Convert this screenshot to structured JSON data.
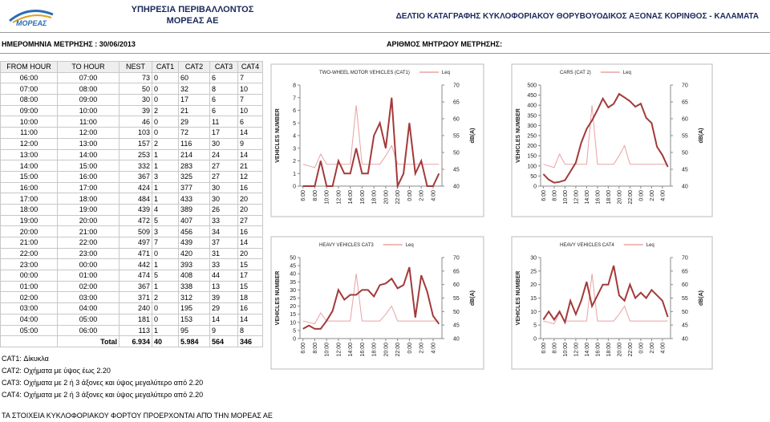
{
  "header": {
    "logo": "ΜΟΡΕΑΣ",
    "org_line1": "ΥΠΗΡΕΣΙΑ ΠΕΡΙΒΑΛΛΟΝΤΟΣ",
    "org_line2": "ΜΟΡΕΑΣ ΑΕ",
    "report_title": "ΔΕΛΤΙΟ ΚΑΤΑΓΡΑΦΗΣ ΚΥΚΛΟΦΟΡΙΑΚΟΥ ΘΟΡΥΒΟΥΟΔΙΚΟΣ ΑΞΟΝΑΣ ΚΟΡΙΝΘΟΣ - ΚΑΛΑΜΑΤΑ"
  },
  "info": {
    "date_label": "ΗΜΕΡΟΜΗΝΙΑ ΜΕΤΡΗΣΗΣ : 30/06/2013",
    "registry_label": "ΑΡΙΘΜΟΣ ΜΗΤΡΩΟΥ ΜΕΤΡΗΣΗΣ:"
  },
  "table": {
    "columns": [
      "FROM HOUR",
      "TO HOUR",
      "NEST",
      "CAT1",
      "CAT2",
      "CAT3",
      "CAT4"
    ],
    "rows": [
      [
        "06:00",
        "07:00",
        73,
        0,
        60,
        6,
        7
      ],
      [
        "07:00",
        "08:00",
        50,
        0,
        32,
        8,
        10
      ],
      [
        "08:00",
        "09:00",
        30,
        0,
        17,
        6,
        7
      ],
      [
        "09:00",
        "10:00",
        39,
        2,
        21,
        6,
        10
      ],
      [
        "10:00",
        "11:00",
        46,
        0,
        29,
        11,
        6
      ],
      [
        "11:00",
        "12:00",
        103,
        0,
        72,
        17,
        14
      ],
      [
        "12:00",
        "13:00",
        157,
        2,
        116,
        30,
        9
      ],
      [
        "13:00",
        "14:00",
        253,
        1,
        214,
        24,
        14
      ],
      [
        "14:00",
        "15:00",
        332,
        1,
        283,
        27,
        21
      ],
      [
        "15:00",
        "16:00",
        367,
        3,
        325,
        27,
        12
      ],
      [
        "16:00",
        "17:00",
        424,
        1,
        377,
        30,
        16
      ],
      [
        "17:00",
        "18:00",
        484,
        1,
        433,
        30,
        20
      ],
      [
        "18:00",
        "19:00",
        439,
        4,
        389,
        26,
        20
      ],
      [
        "19:00",
        "20:00",
        472,
        5,
        407,
        33,
        27
      ],
      [
        "20:00",
        "21:00",
        509,
        3,
        456,
        34,
        16
      ],
      [
        "21:00",
        "22:00",
        497,
        7,
        439,
        37,
        14
      ],
      [
        "22:00",
        "23:00",
        471,
        0,
        420,
        31,
        20
      ],
      [
        "23:00",
        "00:00",
        442,
        1,
        393,
        33,
        15
      ],
      [
        "00:00",
        "01:00",
        474,
        5,
        408,
        44,
        17
      ],
      [
        "01:00",
        "02:00",
        367,
        1,
        338,
        13,
        15
      ],
      [
        "02:00",
        "03:00",
        371,
        2,
        312,
        39,
        18
      ],
      [
        "03:00",
        "04:00",
        240,
        0,
        195,
        29,
        16
      ],
      [
        "04:00",
        "05:00",
        181,
        0,
        153,
        14,
        14
      ],
      [
        "05:00",
        "06:00",
        113,
        1,
        95,
        9,
        8
      ]
    ],
    "total": [
      "Total",
      "6.934",
      "40",
      "5.984",
      "564",
      "346"
    ]
  },
  "notes": [
    "CAT1: Δίκυκλα",
    "CAT2: Οχήματα με ύψος έως 2.20",
    "CAT3: Οχήματα με 2 ή 3 άξονες και ύψος μεγαλύτερο από 2.20",
    "CAT4: Οχήματα με 2 ή 3 άξονες και ύψος μεγαλύτερο από 2.20"
  ],
  "footer": "ΤΑ ΣΤΟΙΧΕΙΑ ΚΥΚΛΟΦΟΡΙΑΚΟΥ ΦΟΡΤΟΥ ΠΡΟΕΡΧΟΝΤΑΙ ΑΠΌ ΤΗΝ ΜΟΡΕΑΣ ΑΕ",
  "chart_data": [
    {
      "type": "line",
      "title": "TWO-WHEEL MOTOR VEHICLES (CAT1)",
      "y_label": "VEHICLES NUMBER",
      "y2_label": "dB(A)",
      "categories": [
        "6:00",
        null,
        "8:00",
        null,
        "10:00",
        null,
        "12:00",
        null,
        "14:00",
        null,
        "16:00",
        null,
        "18:00",
        null,
        "20:00",
        null,
        "22:00",
        null,
        "0:00",
        null,
        "2:00",
        null,
        "4:00",
        null
      ],
      "series": [
        {
          "color": "#a33a3a",
          "values": [
            0,
            0,
            0,
            2,
            0,
            0,
            2,
            1,
            1,
            3,
            1,
            1,
            4,
            5,
            3,
            7,
            0,
            1,
            5,
            1,
            2,
            0,
            0,
            1
          ]
        },
        {
          "name": "Leq",
          "color": "#e8a3a3",
          "axis": "y2",
          "values": [
            46.5,
            46,
            45.5,
            49.5,
            46.5,
            46.5,
            46.5,
            46.5,
            46.5,
            64,
            46.5,
            46.5,
            46.5,
            46.5,
            49,
            52,
            46.5,
            46.5,
            46.5,
            46.5,
            46.5,
            46.5,
            46.5,
            46.5
          ]
        }
      ],
      "ylim": [
        0,
        8
      ],
      "yticks": [
        0,
        1,
        2,
        3,
        4,
        5,
        6,
        7,
        8
      ],
      "y2lim": [
        40,
        70
      ],
      "y2ticks": [
        40,
        45,
        50,
        55,
        60,
        65,
        70
      ]
    },
    {
      "type": "line",
      "title": "CARS (CAT 2)",
      "y_label": "VEHICLES NUMBER",
      "y2_label": "dB(A)",
      "categories": [
        "6:00",
        null,
        "8:00",
        null,
        "10:00",
        null,
        "12:00",
        null,
        "14:00",
        null,
        "16:00",
        null,
        "18:00",
        null,
        "20:00",
        null,
        "22:00",
        null,
        "0:00",
        null,
        "2:00",
        null,
        "4:00",
        null
      ],
      "series": [
        {
          "color": "#a33a3a",
          "values": [
            60,
            32,
            17,
            21,
            29,
            72,
            116,
            214,
            283,
            325,
            377,
            433,
            389,
            407,
            456,
            439,
            420,
            393,
            408,
            338,
            312,
            195,
            153,
            95
          ]
        },
        {
          "name": "Leq",
          "color": "#e8a3a3",
          "axis": "y2",
          "values": [
            46.5,
            46,
            45.5,
            49.5,
            46.5,
            46.5,
            46.5,
            46.5,
            46.5,
            64,
            46.5,
            46.5,
            46.5,
            46.5,
            49,
            52,
            46.5,
            46.5,
            46.5,
            46.5,
            46.5,
            46.5,
            46.5,
            46.5
          ]
        }
      ],
      "ylim": [
        0,
        500
      ],
      "yticks": [
        0,
        50,
        100,
        150,
        200,
        250,
        300,
        350,
        400,
        450,
        500
      ],
      "y2lim": [
        40,
        70
      ],
      "y2ticks": [
        40,
        45,
        50,
        55,
        60,
        65,
        70
      ]
    },
    {
      "type": "line",
      "title": "HEAVY VEHICLES CAT3",
      "y_label": "VEHICLES NUMBER",
      "y2_label": "dB(A)",
      "categories": [
        "6:00",
        null,
        "8:00",
        null,
        "10:00",
        null,
        "12:00",
        null,
        "14:00",
        null,
        "16:00",
        null,
        "18:00",
        null,
        "20:00",
        null,
        "22:00",
        null,
        "0:00",
        null,
        "2:00",
        null,
        "4:00",
        null
      ],
      "series": [
        {
          "color": "#a33a3a",
          "values": [
            6,
            8,
            6,
            6,
            11,
            17,
            30,
            24,
            27,
            27,
            30,
            30,
            26,
            33,
            34,
            37,
            31,
            33,
            44,
            13,
            39,
            29,
            14,
            9
          ]
        },
        {
          "name": "Leq",
          "color": "#e8a3a3",
          "axis": "y2",
          "values": [
            46.5,
            46,
            45.5,
            49.5,
            46.5,
            46.5,
            46.5,
            46.5,
            46.5,
            64,
            46.5,
            46.5,
            46.5,
            46.5,
            49,
            52,
            46.5,
            46.5,
            46.5,
            46.5,
            46.5,
            46.5,
            46.5,
            46.5
          ]
        }
      ],
      "ylim": [
        0,
        50
      ],
      "yticks": [
        0,
        5,
        10,
        15,
        20,
        25,
        30,
        35,
        40,
        45,
        50
      ],
      "y2lim": [
        40,
        70
      ],
      "y2ticks": [
        40,
        45,
        50,
        55,
        60,
        65,
        70
      ]
    },
    {
      "type": "line",
      "title": "HEAVY VEHICLES CAT4",
      "y_label": "VEHICLES NUMBER",
      "y2_label": "dB(A)",
      "categories": [
        "6:00",
        null,
        "8:00",
        null,
        "10:00",
        null,
        "12:00",
        null,
        "14:00",
        null,
        "16:00",
        null,
        "18:00",
        null,
        "20:00",
        null,
        "22:00",
        null,
        "0:00",
        null,
        "2:00",
        null,
        "4:00",
        null
      ],
      "series": [
        {
          "color": "#a33a3a",
          "values": [
            7,
            10,
            7,
            10,
            6,
            14,
            9,
            14,
            21,
            12,
            16,
            20,
            20,
            27,
            16,
            14,
            20,
            15,
            17,
            15,
            18,
            16,
            14,
            8
          ]
        },
        {
          "name": "Leq",
          "color": "#e8a3a3",
          "axis": "y2",
          "values": [
            46.5,
            46,
            45.5,
            49.5,
            46.5,
            46.5,
            46.5,
            46.5,
            46.5,
            64,
            46.5,
            46.5,
            46.5,
            46.5,
            49,
            52,
            46.5,
            46.5,
            46.5,
            46.5,
            46.5,
            46.5,
            46.5,
            46.5
          ]
        }
      ],
      "ylim": [
        0,
        30
      ],
      "yticks": [
        0,
        5,
        10,
        15,
        20,
        25,
        30
      ],
      "y2lim": [
        40,
        70
      ],
      "y2ticks": [
        40,
        45,
        50,
        55,
        60,
        65,
        70
      ]
    }
  ]
}
